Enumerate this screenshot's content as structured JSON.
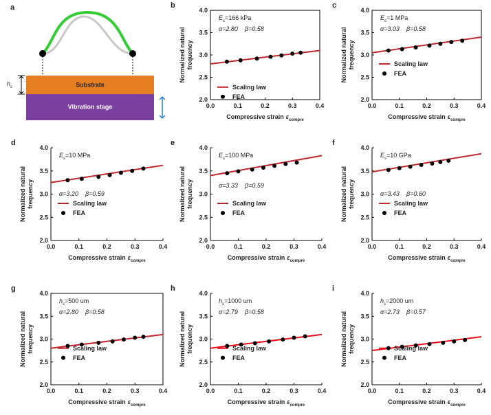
{
  "diagram": {
    "label": "a",
    "h": "h",
    "h_sub": "s",
    "substrate": "Substrate",
    "stage": "Vibration stage"
  },
  "chart_data": [
    {
      "type": "scatter",
      "label": "b",
      "frame": true,
      "legend": "lower left",
      "param": {
        "symbol": "E",
        "subscript": "s",
        "text": "=166 kPa"
      },
      "annotations": [
        "α=2.80",
        "β=0.58"
      ],
      "ylabel": [
        "Normalized natural",
        "frequency"
      ],
      "xlabel": {
        "text": "Compressive strain",
        "symbol": "ε",
        "subscript": "compre"
      },
      "xlim": [
        0,
        0.4
      ],
      "xticks": [
        {
          "value": 0,
          "label": "0.0"
        },
        0.1,
        0.2,
        0.3,
        0.4
      ],
      "ylim": [
        2,
        4
      ],
      "yticks": [
        {
          "value": 2,
          "label": "2.0"
        },
        2.5,
        {
          "value": 3,
          "label": "3.0"
        },
        3.5,
        {
          "value": 4,
          "label": "4.0"
        }
      ],
      "series": [
        {
          "name": "Scaling law",
          "type": "line",
          "color": "#c0272d",
          "x": [
            0,
            0.4
          ],
          "values": [
            2.8,
            3.1
          ]
        },
        {
          "name": "FEA",
          "type": "scatter",
          "color": "#000000",
          "x": [
            0.06,
            0.11,
            0.17,
            0.22,
            0.26,
            0.3,
            0.33
          ],
          "values": [
            2.85,
            2.88,
            2.92,
            2.96,
            2.99,
            3.03,
            3.05
          ]
        }
      ]
    },
    {
      "type": "scatter",
      "label": "c",
      "frame": true,
      "legend": "center left",
      "param": {
        "symbol": "E",
        "subscript": "s",
        "text": "=1 MPa"
      },
      "annotations": [
        "α=3.03",
        "β=0.58"
      ],
      "ylabel": [
        "Normalized natural",
        "frequency"
      ],
      "xlabel": {
        "text": "Compressive strain",
        "symbol": "ε",
        "subscript": "compre"
      },
      "xlim": [
        0,
        0.4
      ],
      "xticks": [
        {
          "value": 0,
          "label": "0.0"
        },
        0.1,
        0.2,
        0.3,
        0.4
      ],
      "ylim": [
        2,
        4
      ],
      "yticks": [
        {
          "value": 2,
          "label": "2.0"
        },
        2.5,
        {
          "value": 3,
          "label": "3.0"
        },
        3.5,
        {
          "value": 4,
          "label": "4.0"
        }
      ],
      "series": [
        {
          "name": "Scaling law",
          "type": "line",
          "color": "#c0272d",
          "x": [
            0,
            0.4
          ],
          "values": [
            3.05,
            3.4
          ]
        },
        {
          "name": "FEA",
          "type": "scatter",
          "color": "#000000",
          "x": [
            0.06,
            0.11,
            0.16,
            0.21,
            0.25,
            0.29,
            0.33
          ],
          "values": [
            3.1,
            3.13,
            3.17,
            3.21,
            3.25,
            3.29,
            3.32
          ]
        }
      ]
    },
    {
      "type": "scatter",
      "label": "d",
      "frame": false,
      "legend": "center left",
      "param": {
        "symbol": "E",
        "subscript": "s",
        "text": "=10 MPa"
      },
      "annotations": [
        "α=3.20",
        "β=0.59"
      ],
      "ylabel": [
        "Normalized natural",
        "frequency"
      ],
      "xlabel": {
        "text": "Compressive strain",
        "symbol": "ε",
        "subscript": "compre"
      },
      "xlim": [
        0,
        0.4
      ],
      "xticks": [
        {
          "value": 0,
          "label": "0.0"
        },
        0.1,
        0.2,
        0.3,
        0.4
      ],
      "ylim": [
        2,
        4
      ],
      "yticks": [
        {
          "value": 2,
          "label": "2.0"
        },
        2.5,
        {
          "value": 3,
          "label": "3.0"
        },
        3.5,
        {
          "value": 4,
          "label": "4.0"
        }
      ],
      "series": [
        {
          "name": "Scaling law",
          "type": "line",
          "color": "#c0272d",
          "x": [
            0,
            0.4
          ],
          "values": [
            3.25,
            3.62
          ]
        },
        {
          "name": "FEA",
          "type": "scatter",
          "color": "#000000",
          "x": [
            0.06,
            0.11,
            0.17,
            0.21,
            0.25,
            0.29,
            0.33
          ],
          "values": [
            3.3,
            3.33,
            3.37,
            3.41,
            3.46,
            3.5,
            3.55
          ]
        }
      ]
    },
    {
      "type": "scatter",
      "label": "e",
      "frame": false,
      "legend": "center left",
      "param": {
        "symbol": "E",
        "subscript": "s",
        "text": "=100 MPa"
      },
      "annotations": [
        "α=3.33",
        "β=0.59"
      ],
      "ylabel": [
        "Normalized natural",
        "frequency"
      ],
      "xlabel": {
        "text": "Compressive strain",
        "symbol": "ε",
        "subscript": "compre"
      },
      "xlim": [
        0,
        0.4
      ],
      "xticks": [
        {
          "value": 0,
          "label": "0.0"
        },
        0.1,
        0.2,
        0.3,
        0.4
      ],
      "ylim": [
        2,
        4
      ],
      "yticks": [
        {
          "value": 2,
          "label": "2.0"
        },
        2.5,
        {
          "value": 3,
          "label": "3.0"
        },
        3.5,
        {
          "value": 4,
          "label": "4.0"
        }
      ],
      "series": [
        {
          "name": "Scaling law",
          "type": "line",
          "color": "#c0272d",
          "x": [
            0,
            0.4
          ],
          "values": [
            3.4,
            3.83
          ]
        },
        {
          "name": "FEA",
          "type": "scatter",
          "color": "#000000",
          "x": [
            0.06,
            0.1,
            0.15,
            0.19,
            0.23,
            0.27,
            0.31
          ],
          "values": [
            3.45,
            3.49,
            3.53,
            3.57,
            3.61,
            3.65,
            3.68
          ]
        }
      ]
    },
    {
      "type": "scatter",
      "label": "f",
      "frame": false,
      "legend": "center left",
      "param": {
        "symbol": "E",
        "subscript": "s",
        "text": "=10 GPa"
      },
      "annotations": [
        "α=3.43",
        "β=0.60"
      ],
      "ylabel": [
        "Normalized natural",
        "frequency"
      ],
      "xlabel": {
        "text": "Compressive strain",
        "symbol": "ε",
        "subscript": "compre"
      },
      "xlim": [
        0,
        0.4
      ],
      "xticks": [
        {
          "value": 0,
          "label": "0.0"
        },
        0.1,
        0.2,
        0.3,
        0.4
      ],
      "ylim": [
        2,
        4
      ],
      "yticks": [
        {
          "value": 2,
          "label": "2.0"
        },
        2.5,
        {
          "value": 3,
          "label": "3.0"
        },
        3.5,
        {
          "value": 4,
          "label": "4.0"
        }
      ],
      "series": [
        {
          "name": "Scaling law",
          "type": "line",
          "color": "#c0272d",
          "x": [
            0,
            0.4
          ],
          "values": [
            3.48,
            3.87
          ]
        },
        {
          "name": "FEA",
          "type": "scatter",
          "color": "#000000",
          "x": [
            0.06,
            0.1,
            0.14,
            0.18,
            0.22,
            0.25,
            0.28
          ],
          "values": [
            3.52,
            3.56,
            3.59,
            3.63,
            3.66,
            3.69,
            3.72
          ]
        }
      ]
    },
    {
      "type": "scatter",
      "label": "g",
      "frame": true,
      "legend": "center left",
      "param": {
        "symbol": "h",
        "subscript": "s",
        "text": "=500 um"
      },
      "annotations": [
        "α=2.80",
        "β=0.58"
      ],
      "ylabel": [
        "Normalized natural",
        "frequency"
      ],
      "xlabel": {
        "text": "Compressive strain",
        "symbol": "ε",
        "subscript": "compre"
      },
      "xlim": [
        0,
        0.4
      ],
      "xticks": [
        {
          "value": 0,
          "label": "0.0"
        },
        0.1,
        0.2,
        0.3,
        0.4
      ],
      "ylim": [
        2,
        4
      ],
      "yticks": [
        {
          "value": 2,
          "label": "2.0"
        },
        2.5,
        {
          "value": 3,
          "label": "3.0"
        },
        3.5,
        {
          "value": 4,
          "label": "4.0"
        }
      ],
      "series": [
        {
          "name": "Scaling law",
          "type": "line",
          "color": "#c0272d",
          "x": [
            0,
            0.4
          ],
          "values": [
            2.8,
            3.1
          ]
        },
        {
          "name": "FEA",
          "type": "scatter",
          "color": "#000000",
          "x": [
            0.06,
            0.11,
            0.17,
            0.22,
            0.26,
            0.3,
            0.33
          ],
          "values": [
            2.85,
            2.88,
            2.92,
            2.95,
            2.99,
            3.03,
            3.05
          ]
        }
      ]
    },
    {
      "type": "scatter",
      "label": "h",
      "frame": false,
      "legend": "center left",
      "param": {
        "symbol": "h",
        "subscript": "s",
        "text": "=1000 um"
      },
      "annotations": [
        "α=2.79",
        "β=0.58"
      ],
      "ylabel": [
        "Normalized natural",
        "frequency"
      ],
      "xlabel": {
        "text": "Compressive strain",
        "symbol": "ε",
        "subscript": "compre"
      },
      "xlim": [
        0,
        0.4
      ],
      "xticks": [
        {
          "value": 0,
          "label": "0.0"
        },
        0.1,
        0.2,
        0.3,
        0.4
      ],
      "ylim": [
        2,
        4
      ],
      "yticks": [
        {
          "value": 2,
          "label": "2.0"
        },
        2.5,
        {
          "value": 3,
          "label": "3.0"
        },
        3.5,
        {
          "value": 4,
          "label": "4.0"
        }
      ],
      "series": [
        {
          "name": "Scaling law",
          "type": "line",
          "color": "#e8101a",
          "x": [
            0,
            0.4
          ],
          "values": [
            2.8,
            3.1
          ]
        },
        {
          "name": "FEA",
          "type": "scatter",
          "color": "#000000",
          "x": [
            0.06,
            0.11,
            0.16,
            0.21,
            0.26,
            0.3,
            0.34
          ],
          "values": [
            2.85,
            2.88,
            2.91,
            2.95,
            2.99,
            3.03,
            3.06
          ]
        }
      ]
    },
    {
      "type": "scatter",
      "label": "i",
      "frame": false,
      "legend": "center left",
      "param": {
        "symbol": "h",
        "subscript": "s",
        "text": "=2000 um"
      },
      "annotations": [
        "α=2.73",
        "β=0.57"
      ],
      "ylabel": [
        "Normalized natural",
        "frequency"
      ],
      "xlabel": {
        "text": "Compressive strain",
        "symbol": "ε",
        "subscript": "compre"
      },
      "xlim": [
        0,
        0.4
      ],
      "xticks": [
        {
          "value": 0,
          "label": "0.0"
        },
        0.1,
        0.2,
        0.3,
        0.4
      ],
      "ylim": [
        2,
        4
      ],
      "yticks": [
        {
          "value": 2,
          "label": "2.0"
        },
        2.5,
        {
          "value": 3,
          "label": "3.0"
        },
        3.5,
        {
          "value": 4,
          "label": "4.0"
        }
      ],
      "series": [
        {
          "name": "Scaling law",
          "type": "line",
          "color": "#e8101a",
          "x": [
            0,
            0.4
          ],
          "values": [
            2.75,
            3.05
          ]
        },
        {
          "name": "FEA",
          "type": "scatter",
          "color": "#000000",
          "x": [
            0.06,
            0.11,
            0.16,
            0.21,
            0.26,
            0.3,
            0.34
          ],
          "values": [
            2.8,
            2.83,
            2.86,
            2.89,
            2.92,
            2.95,
            2.98
          ]
        }
      ]
    }
  ]
}
